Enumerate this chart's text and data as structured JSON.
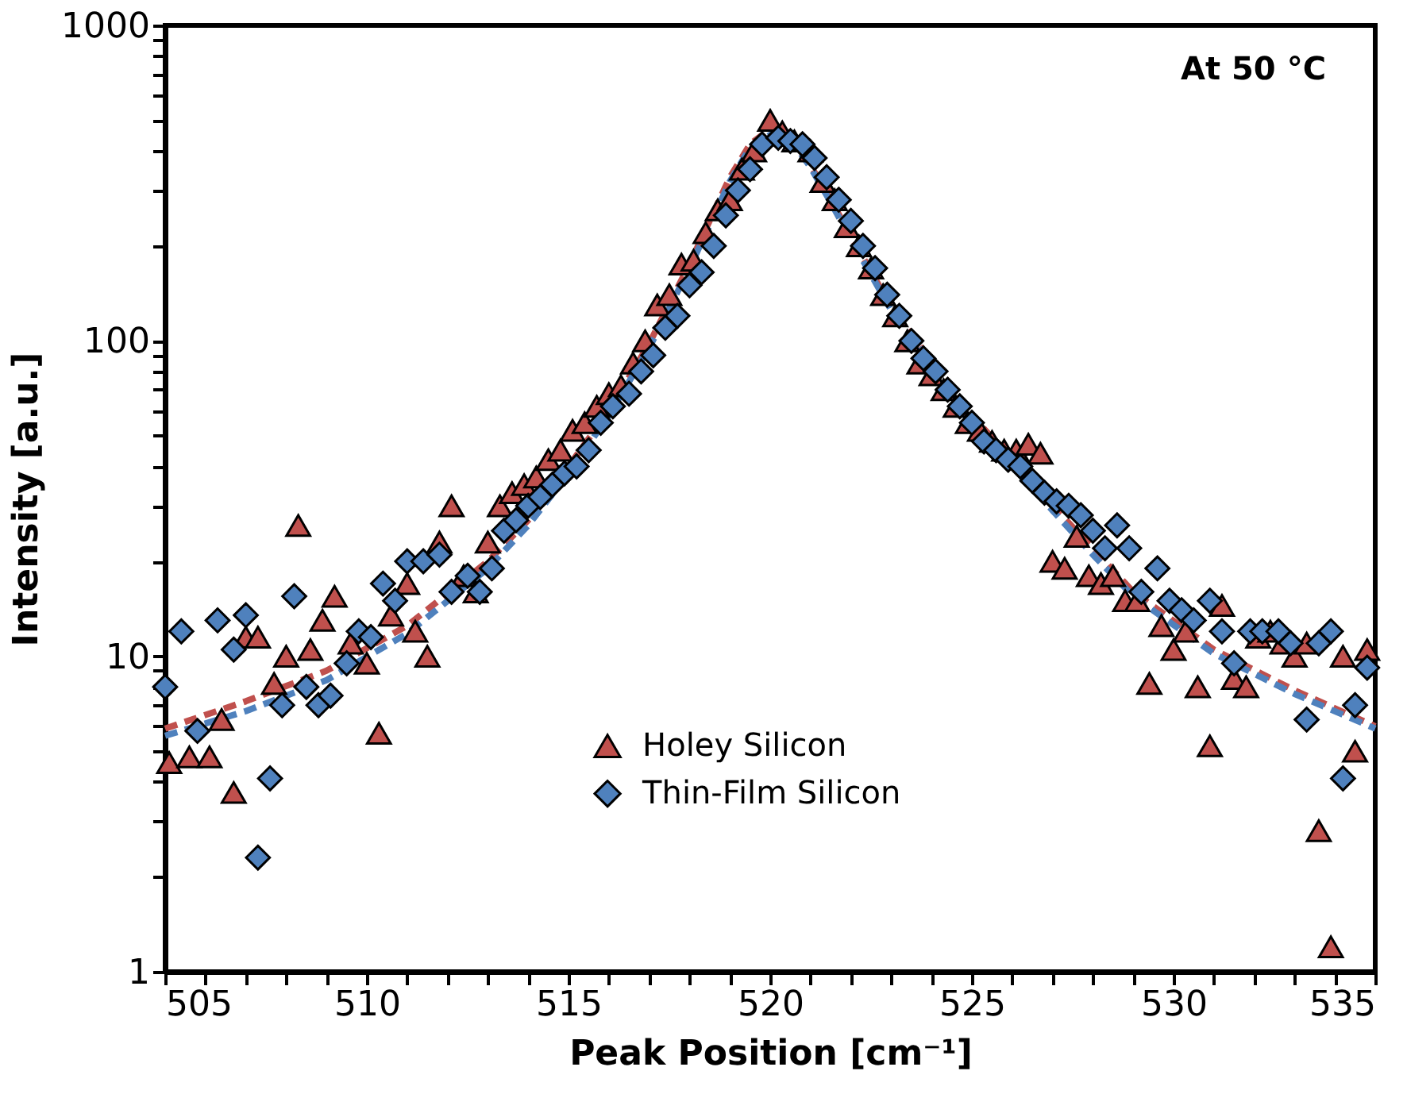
{
  "chart_data": {
    "type": "scatter",
    "xlabel": "Peak Position [cm⁻¹]",
    "ylabel": "Intensity [a.u.]",
    "annotations": [
      "At 50 °C"
    ],
    "log": "y",
    "grid": false,
    "legend": "bottom",
    "xlim": [
      505,
      535
    ],
    "xticks": [
      505,
      {
        "value": 506,
        "label": null
      },
      {
        "value": 507,
        "label": null
      },
      {
        "value": 508,
        "label": null
      },
      {
        "value": 509,
        "label": null
      },
      510,
      {
        "value": 511,
        "label": null
      },
      {
        "value": 512,
        "label": null
      },
      {
        "value": 513,
        "label": null
      },
      {
        "value": 514,
        "label": null
      },
      515,
      {
        "value": 516,
        "label": null
      },
      {
        "value": 517,
        "label": null
      },
      {
        "value": 518,
        "label": null
      },
      {
        "value": 519,
        "label": null
      },
      520,
      {
        "value": 521,
        "label": null
      },
      {
        "value": 522,
        "label": null
      },
      {
        "value": 523,
        "label": null
      },
      {
        "value": 524,
        "label": null
      },
      525,
      {
        "value": 526,
        "label": null
      },
      {
        "value": 527,
        "label": null
      },
      {
        "value": 528,
        "label": null
      },
      {
        "value": 529,
        "label": null
      },
      530,
      {
        "value": 531,
        "label": null
      },
      {
        "value": 532,
        "label": null
      },
      {
        "value": 533,
        "label": null
      },
      {
        "value": 534,
        "label": null
      },
      535
    ],
    "ylim": [
      1,
      1000
    ],
    "yticks": [
      1,
      {
        "value": 2,
        "label": null
      },
      {
        "value": 3,
        "label": null
      },
      {
        "value": 4,
        "label": null
      },
      {
        "value": 5,
        "label": null
      },
      {
        "value": 6,
        "label": null
      },
      {
        "value": 7,
        "label": null
      },
      {
        "value": 8,
        "label": null
      },
      {
        "value": 9,
        "label": null
      },
      10,
      {
        "value": 20,
        "label": null
      },
      {
        "value": 30,
        "label": null
      },
      {
        "value": 40,
        "label": null
      },
      {
        "value": 50,
        "label": null
      },
      {
        "value": 60,
        "label": null
      },
      {
        "value": 70,
        "label": null
      },
      {
        "value": 80,
        "label": null
      },
      {
        "value": 90,
        "label": null
      },
      100,
      {
        "value": 200,
        "label": null
      },
      {
        "value": 300,
        "label": null
      },
      {
        "value": 400,
        "label": null
      },
      {
        "value": 500,
        "label": null
      },
      {
        "value": 600,
        "label": null
      },
      {
        "value": 700,
        "label": null
      },
      {
        "value": 800,
        "label": null
      },
      {
        "value": 900,
        "label": null
      },
      1000
    ],
    "series": [
      {
        "type": "line",
        "line_style": "dashed",
        "marker": "none",
        "color": "#c0504d",
        "x": [
          505,
          507,
          509,
          511,
          513,
          514,
          515,
          516,
          517,
          518,
          519,
          519.5,
          520,
          520.5,
          521,
          521.5,
          522,
          523,
          524,
          525,
          526,
          527,
          528,
          529,
          531,
          533,
          535
        ],
        "values": [
          5.9,
          7.2,
          9.0,
          12.5,
          20,
          27,
          40,
          60,
          98,
          175,
          330,
          420,
          470,
          440,
          360,
          280,
          215,
          128,
          86,
          58,
          42,
          30,
          22,
          16,
          10.5,
          7.8,
          6.0
        ]
      },
      {
        "type": "line",
        "line_style": "dashed",
        "marker": "none",
        "color": "#4f81bd",
        "x": [
          505,
          507,
          509,
          511,
          513,
          514,
          515,
          516,
          517,
          518,
          519,
          519.5,
          520,
          520.5,
          521,
          521.5,
          522,
          523,
          524,
          525,
          526,
          527,
          528,
          529,
          531,
          533,
          535
        ],
        "values": [
          5.6,
          6.7,
          8.4,
          11.8,
          19,
          26,
          38,
          58,
          95,
          170,
          320,
          410,
          450,
          435,
          355,
          275,
          210,
          125,
          84,
          56,
          40,
          29,
          21,
          15.5,
          10.2,
          7.6,
          5.9
        ]
      },
      {
        "name": "Holey Silicon",
        "type": "scatter",
        "marker": "triangle",
        "color": "#c0504d",
        "x": [
          505.1,
          505.6,
          506.1,
          506.4,
          506.7,
          507.0,
          507.3,
          507.7,
          508.0,
          508.3,
          508.6,
          508.9,
          509.2,
          509.6,
          510.0,
          510.3,
          510.6,
          511.0,
          511.2,
          511.5,
          511.8,
          512.1,
          512.4,
          512.7,
          513.0,
          513.3,
          513.6,
          513.9,
          514.2,
          514.5,
          514.8,
          515.1,
          515.4,
          515.7,
          516.0,
          516.3,
          516.6,
          516.9,
          517.2,
          517.5,
          517.8,
          518.1,
          518.4,
          518.7,
          519.0,
          519.3,
          519.6,
          520.0,
          520.3,
          520.6,
          521.0,
          521.3,
          521.6,
          521.9,
          522.2,
          522.5,
          522.8,
          523.1,
          523.4,
          523.7,
          524.0,
          524.3,
          524.6,
          524.9,
          525.2,
          525.5,
          525.8,
          526.1,
          526.4,
          526.7,
          527.0,
          527.3,
          527.6,
          527.9,
          528.2,
          528.5,
          528.8,
          529.1,
          529.4,
          529.7,
          530.0,
          530.3,
          530.6,
          530.9,
          531.2,
          531.5,
          531.8,
          532.1,
          532.4,
          532.7,
          533.0,
          533.3,
          533.6,
          533.9,
          534.2,
          534.5,
          534.8
        ],
        "values": [
          4.6,
          4.8,
          4.8,
          6.3,
          3.7,
          11.5,
          11.5,
          8.2,
          10,
          26,
          10.5,
          13,
          15.5,
          11,
          9.5,
          5.7,
          13.5,
          17,
          12,
          10,
          23,
          30,
          18,
          16,
          23,
          30,
          33,
          35,
          37,
          42,
          45,
          52,
          55,
          62,
          68,
          72,
          85,
          100,
          130,
          140,
          175,
          180,
          220,
          260,
          280,
          350,
          400,
          500,
          460,
          430,
          400,
          320,
          280,
          230,
          200,
          170,
          140,
          120,
          100,
          85,
          78,
          70,
          62,
          55,
          52,
          48,
          45,
          45,
          47,
          44,
          20,
          19,
          24,
          18,
          17,
          18,
          15,
          15,
          8.2,
          12.5,
          10.5,
          12,
          8,
          5.2,
          14.5,
          8.5,
          8,
          11.5,
          12,
          11,
          10,
          11,
          2.8,
          1.2,
          10,
          5,
          10.5
        ]
      },
      {
        "name": "Thin-Film Silicon",
        "type": "scatter",
        "marker": "diamond",
        "color": "#4f81bd",
        "x": [
          505.0,
          505.4,
          505.8,
          506.3,
          506.7,
          507.0,
          507.3,
          507.6,
          507.9,
          508.2,
          508.5,
          508.8,
          509.1,
          509.5,
          509.8,
          510.1,
          510.4,
          510.7,
          511.0,
          511.4,
          511.8,
          512.1,
          512.5,
          512.8,
          513.1,
          513.4,
          513.7,
          514.0,
          514.3,
          514.6,
          514.9,
          515.2,
          515.5,
          515.8,
          516.1,
          516.5,
          516.8,
          517.1,
          517.4,
          517.7,
          518.0,
          518.3,
          518.6,
          518.9,
          519.2,
          519.5,
          519.8,
          520.2,
          520.5,
          520.8,
          521.1,
          521.4,
          521.7,
          522.0,
          522.3,
          522.6,
          522.9,
          523.2,
          523.5,
          523.8,
          524.1,
          524.4,
          524.7,
          525.0,
          525.3,
          525.6,
          525.9,
          526.2,
          526.5,
          526.8,
          527.1,
          527.4,
          527.7,
          528.0,
          528.3,
          528.6,
          528.9,
          529.2,
          529.6,
          529.9,
          530.2,
          530.5,
          530.9,
          531.2,
          531.5,
          531.9,
          532.2,
          532.6,
          532.9,
          533.3,
          533.6,
          533.9,
          534.2,
          534.5,
          534.8
        ],
        "values": [
          8,
          12,
          5.8,
          13,
          10.5,
          13.5,
          2.3,
          4.1,
          7,
          15.5,
          8,
          7,
          7.5,
          9.5,
          12,
          11.5,
          17,
          15,
          20,
          20,
          21,
          16,
          18,
          16,
          19,
          25,
          27,
          30,
          32,
          35,
          38,
          40,
          45,
          55,
          62,
          68,
          80,
          90,
          110,
          120,
          150,
          165,
          200,
          250,
          300,
          350,
          420,
          440,
          430,
          420,
          380,
          330,
          280,
          240,
          200,
          170,
          140,
          120,
          100,
          88,
          80,
          70,
          62,
          55,
          48,
          45,
          42,
          40,
          36,
          33,
          31,
          30,
          28,
          25,
          22,
          26,
          22,
          16,
          19,
          15,
          14,
          13,
          15,
          12,
          9.5,
          12,
          12,
          12,
          11,
          6.3,
          11,
          12,
          4.1,
          7,
          9.2
        ]
      }
    ]
  }
}
